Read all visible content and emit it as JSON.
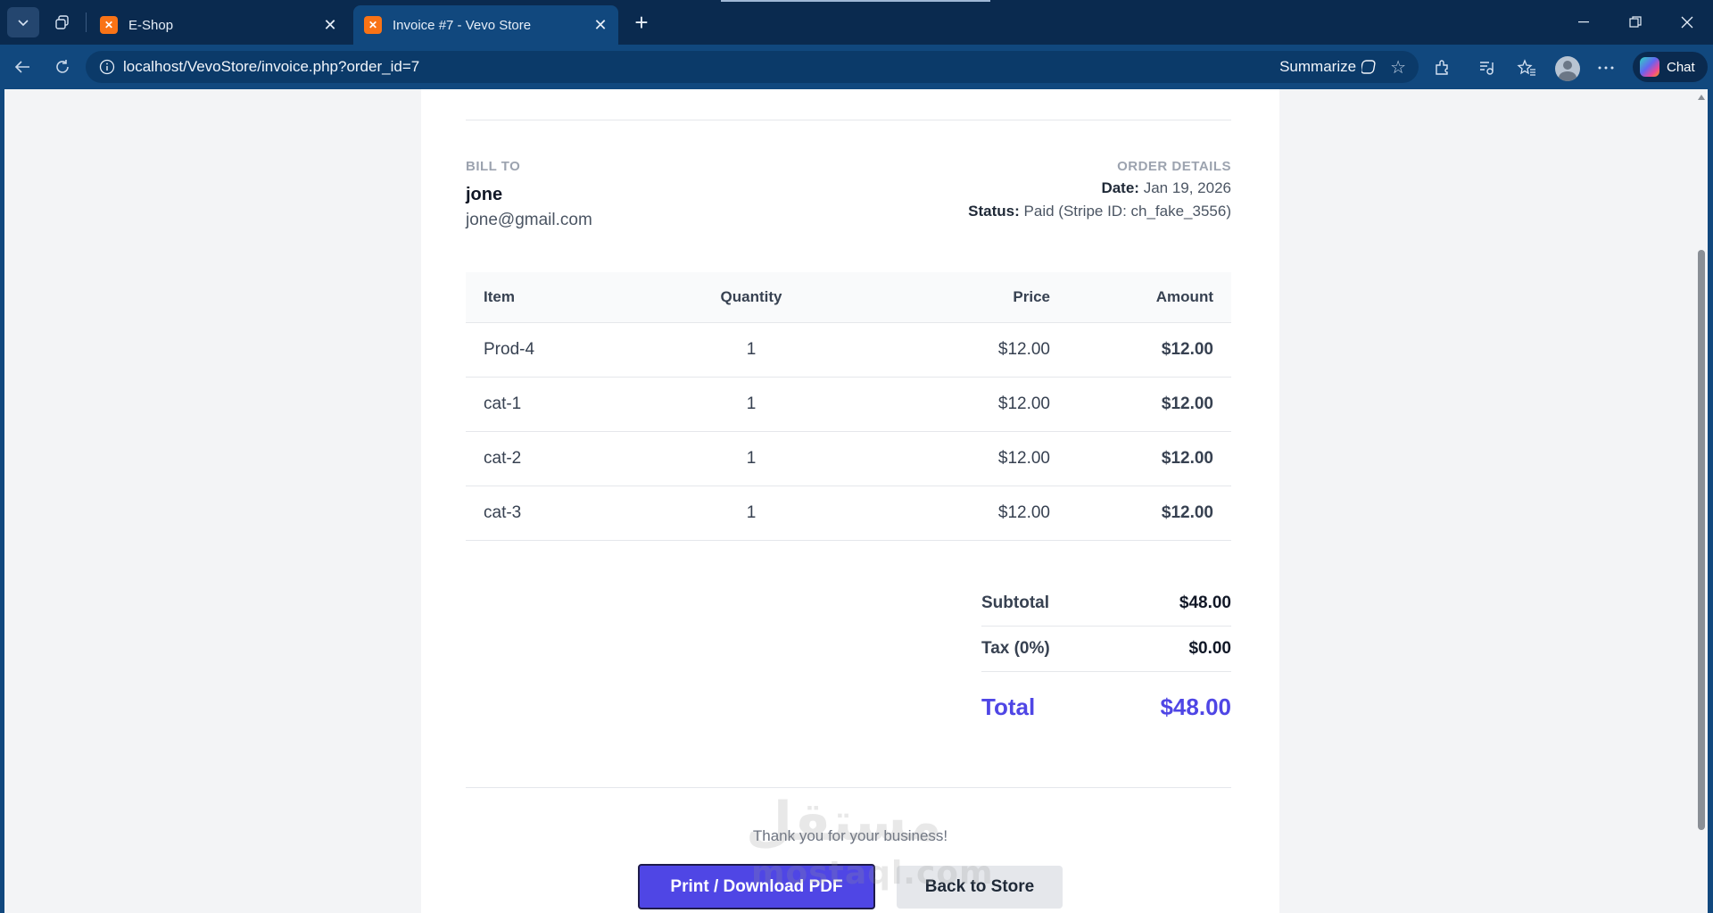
{
  "browser": {
    "tabs": [
      {
        "label": "E-Shop",
        "active": false
      },
      {
        "label": "Invoice #7 - Vevo Store",
        "active": true
      }
    ],
    "url": "localhost/VevoStore/invoice.php?order_id=7",
    "summarize_label": "Summarize",
    "chat_label": "Chat"
  },
  "invoice": {
    "bill_to_label": "BILL TO",
    "customer_name": "jone",
    "customer_email": "jone@gmail.com",
    "order_details_label": "ORDER DETAILS",
    "date_label": "Date:",
    "date_value": "Jan 19, 2026",
    "status_label": "Status:",
    "status_value": "Paid (Stripe ID: ch_fake_3556)",
    "columns": [
      "Item",
      "Quantity",
      "Price",
      "Amount"
    ],
    "rows": [
      {
        "item": "Prod-4",
        "quantity": "1",
        "price": "$12.00",
        "amount": "$12.00"
      },
      {
        "item": "cat-1",
        "quantity": "1",
        "price": "$12.00",
        "amount": "$12.00"
      },
      {
        "item": "cat-2",
        "quantity": "1",
        "price": "$12.00",
        "amount": "$12.00"
      },
      {
        "item": "cat-3",
        "quantity": "1",
        "price": "$12.00",
        "amount": "$12.00"
      }
    ],
    "subtotal_label": "Subtotal",
    "subtotal_value": "$48.00",
    "tax_label": "Tax (0%)",
    "tax_value": "$0.00",
    "total_label": "Total",
    "total_value": "$48.00",
    "thanks": "Thank you for your business!",
    "print_button": "Print / Download PDF",
    "back_button": "Back to Store"
  },
  "watermark": {
    "arabic": "مستقل",
    "latin": "mostaql.com"
  },
  "colors": {
    "accent": "#4f46e5",
    "tab_bar": "#0a2a4f",
    "address_bar": "#11487e"
  }
}
